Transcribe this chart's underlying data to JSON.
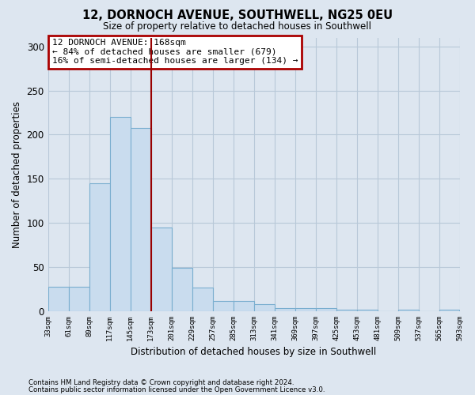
{
  "title": "12, DORNOCH AVENUE, SOUTHWELL, NG25 0EU",
  "subtitle": "Size of property relative to detached houses in Southwell",
  "xlabel": "Distribution of detached houses by size in Southwell",
  "ylabel": "Number of detached properties",
  "bar_values": [
    28,
    28,
    145,
    220,
    208,
    95,
    49,
    27,
    12,
    12,
    8,
    4,
    4,
    4,
    2,
    2,
    0,
    2,
    0,
    2
  ],
  "bar_labels": [
    "33sqm",
    "61sqm",
    "89sqm",
    "117sqm",
    "145sqm",
    "173sqm",
    "201sqm",
    "229sqm",
    "257sqm",
    "285sqm",
    "313sqm",
    "341sqm",
    "369sqm",
    "397sqm",
    "425sqm",
    "453sqm",
    "481sqm",
    "509sqm",
    "537sqm",
    "565sqm",
    "593sqm"
  ],
  "bar_color": "#c9dcee",
  "bar_edge_color": "#7aaecf",
  "vline_color": "#990000",
  "vline_pos": 5.0,
  "annotation_text": "12 DORNOCH AVENUE: 168sqm\n← 84% of detached houses are smaller (679)\n16% of semi-detached houses are larger (134) →",
  "annotation_box_edgecolor": "#aa0000",
  "ylim": [
    0,
    310
  ],
  "yticks": [
    0,
    50,
    100,
    150,
    200,
    250,
    300
  ],
  "background_color": "#dde6f0",
  "grid_color": "#b8c8d8",
  "footnote1": "Contains HM Land Registry data © Crown copyright and database right 2024.",
  "footnote2": "Contains public sector information licensed under the Open Government Licence v3.0."
}
